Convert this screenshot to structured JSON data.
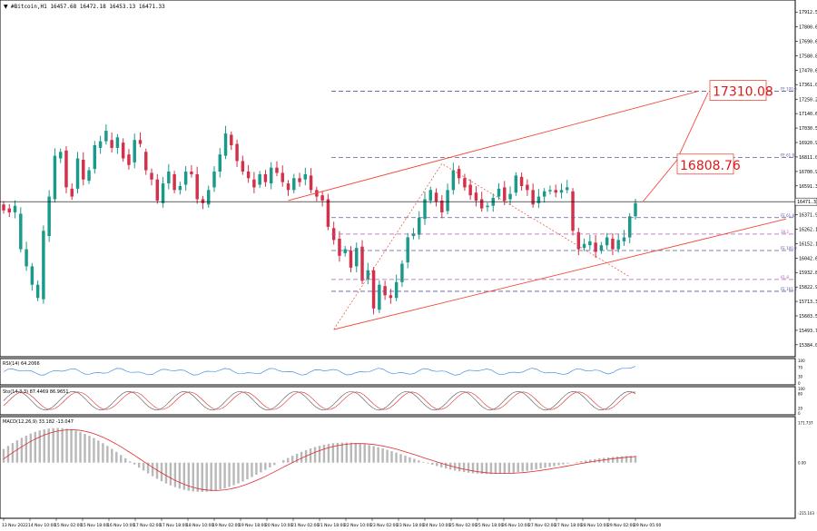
{
  "header": {
    "symbol_line": "#Bitcoin,H1  16457.68 16472.18 16453.13 16471.33"
  },
  "chart_data": [
    {
      "type": "candlestick",
      "name": "main",
      "price_axis": {
        "ticks": [
          17912.5,
          17800.6,
          17690.6,
          17580.85,
          17470.6,
          17361.0,
          17250.25,
          17140.6,
          17030.55,
          16920.9,
          16811.0,
          16700.9,
          16591.3,
          16481.55,
          16371.9,
          16262.1,
          16152.15,
          16042.6,
          15932.85,
          15822.95,
          15713.3,
          15603.55,
          15493.7,
          15384.0
        ],
        "ylim": [
          15300,
          17990
        ]
      },
      "current_price": "16471.33",
      "time_axis": {
        "labels": [
          "13 Nov 2022",
          "14 Nov 10:00",
          "15 Nov 02:00",
          "15 Nov 18:00",
          "16 Nov 10:00",
          "17 Nov 02:00",
          "17 Nov 18:00",
          "18 Nov 10:00",
          "19 Nov 02:00",
          "19 Nov 18:00",
          "20 Nov 10:00",
          "21 Nov 02:00",
          "21 Nov 18:00",
          "22 Nov 10:00",
          "23 Nov 02:00",
          "23 Nov 18:00",
          "24 Nov 10:00",
          "25 Nov 02:00",
          "25 Nov 18:00",
          "26 Nov 10:00",
          "27 Nov 02:00",
          "27 Nov 18:00",
          "28 Nov 10:00",
          "29 Nov 02:00",
          "29 Nov 05:00"
        ]
      },
      "annotations": {
        "target_high": "17310.08",
        "target_mid": "16808.76"
      },
      "fib_levels": [
        {
          "label": "FE 100.0",
          "price": 17310,
          "color": "#5b5b9e"
        },
        {
          "label": "FE 61.8",
          "price": 16808,
          "color": "#5b5b9e"
        },
        {
          "label": "FE 61.8",
          "price": 16350,
          "color": "#5b5b9e"
        },
        {
          "label": "38.2",
          "price": 16225,
          "color": "#b05fb0"
        },
        {
          "label": "FE 100.0",
          "price": 16100,
          "color": "#5b5b9e"
        },
        {
          "label": "61.8",
          "price": 15880,
          "color": "#b05fb0"
        },
        {
          "label": "FE 161.8",
          "price": 15790,
          "color": "#5b5b9e"
        }
      ],
      "candles": [
        [
          16450,
          16405
        ],
        [
          16420,
          16390
        ],
        [
          16390,
          16440
        ],
        [
          16110,
          16380
        ],
        [
          15980,
          16110
        ],
        [
          15840,
          15980
        ],
        [
          15740,
          15840
        ],
        [
          15730,
          16250
        ],
        [
          16210,
          16510
        ],
        [
          16490,
          16820
        ],
        [
          16800,
          16850
        ],
        [
          16860,
          16580
        ],
        [
          16570,
          16510
        ],
        [
          16570,
          16800
        ],
        [
          16790,
          16640
        ],
        [
          16630,
          16710
        ],
        [
          16720,
          16900
        ],
        [
          16880,
          16930
        ],
        [
          16930,
          17010
        ],
        [
          16940,
          16880
        ],
        [
          16880,
          16960
        ],
        [
          16920,
          16800
        ],
        [
          16830,
          16750
        ],
        [
          16770,
          16940
        ],
        [
          16940,
          16910
        ],
        [
          16850,
          16710
        ],
        [
          16690,
          16640
        ],
        [
          16640,
          16480
        ],
        [
          16460,
          16610
        ],
        [
          16610,
          16700
        ],
        [
          16680,
          16560
        ],
        [
          16560,
          16590
        ],
        [
          16600,
          16700
        ],
        [
          16700,
          16680
        ],
        [
          16680,
          16490
        ],
        [
          16490,
          16460
        ],
        [
          16450,
          16560
        ],
        [
          16580,
          16700
        ],
        [
          16700,
          16830
        ],
        [
          16820,
          16990
        ],
        [
          16980,
          16900
        ],
        [
          16910,
          16780
        ],
        [
          16780,
          16700
        ],
        [
          16700,
          16650
        ],
        [
          16640,
          16580
        ],
        [
          16600,
          16680
        ],
        [
          16680,
          16620
        ],
        [
          16610,
          16730
        ],
        [
          16730,
          16690
        ],
        [
          16690,
          16620
        ],
        [
          16610,
          16560
        ],
        [
          16560,
          16650
        ],
        [
          16650,
          16620
        ],
        [
          16640,
          16680
        ],
        [
          16670,
          16560
        ],
        [
          16560,
          16510
        ],
        [
          16520,
          16480
        ],
        [
          16490,
          16280
        ],
        [
          16270,
          16180
        ],
        [
          16190,
          16060
        ],
        [
          16080,
          16110
        ],
        [
          16100,
          15970
        ],
        [
          15980,
          16120
        ],
        [
          16130,
          15870
        ],
        [
          15880,
          15950
        ],
        [
          15950,
          15660
        ],
        [
          15650,
          15840
        ],
        [
          15830,
          15760
        ],
        [
          15760,
          15740
        ],
        [
          15740,
          15860
        ],
        [
          15860,
          16000
        ],
        [
          16010,
          16200
        ],
        [
          16210,
          16230
        ],
        [
          16220,
          16350
        ],
        [
          16340,
          16490
        ],
        [
          16480,
          16560
        ],
        [
          16540,
          16470
        ],
        [
          16480,
          16390
        ],
        [
          16400,
          16560
        ],
        [
          16560,
          16710
        ],
        [
          16720,
          16650
        ],
        [
          16650,
          16580
        ],
        [
          16600,
          16520
        ],
        [
          16540,
          16480
        ],
        [
          16490,
          16420
        ],
        [
          16430,
          16440
        ],
        [
          16440,
          16500
        ],
        [
          16510,
          16570
        ],
        [
          16580,
          16480
        ],
        [
          16490,
          16530
        ],
        [
          16540,
          16670
        ],
        [
          16660,
          16590
        ],
        [
          16600,
          16560
        ],
        [
          16560,
          16450
        ],
        [
          16460,
          16510
        ],
        [
          16510,
          16550
        ],
        [
          16550,
          16560
        ],
        [
          16560,
          16540
        ],
        [
          16540,
          16560
        ],
        [
          16560,
          16580
        ],
        [
          16550,
          16250
        ],
        [
          16240,
          16110
        ],
        [
          16120,
          16150
        ],
        [
          16140,
          16170
        ],
        [
          16160,
          16090
        ],
        [
          16100,
          16140
        ],
        [
          16140,
          16200
        ],
        [
          16190,
          16110
        ],
        [
          16110,
          16180
        ],
        [
          16170,
          16200
        ],
        [
          16200,
          16360
        ],
        [
          16360,
          16460
        ]
      ]
    },
    {
      "type": "line",
      "name": "rsi",
      "label": "RSI(14) 64.2066",
      "ylim": [
        0,
        100
      ],
      "ticks": [
        "100",
        "70",
        "30",
        "0"
      ]
    },
    {
      "type": "line",
      "name": "stochastic",
      "label": "Sto(14,3,3) 87.4469 86.9651",
      "ylim": [
        0,
        100
      ],
      "ticks": [
        "100",
        "80",
        "20",
        "0"
      ]
    },
    {
      "type": "bar",
      "name": "macd",
      "label": "MACD(12,26,9) 33.182 -13.047",
      "ticks": [
        "171.737",
        "0.00",
        "-215.103"
      ],
      "ylim": [
        -230,
        185
      ]
    }
  ],
  "colors": {
    "bull": "#1a9a8a",
    "bear": "#d4304a",
    "channel": "#f04a3a",
    "rsi": "#4a90e0",
    "signal": "#e02a2a",
    "macd_hist": "#b8b8b8"
  }
}
